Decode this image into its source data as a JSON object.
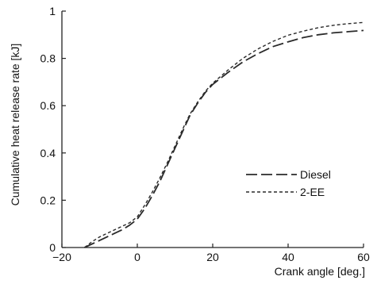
{
  "chart_data": {
    "type": "line",
    "xlabel": "Crank angle [deg.]",
    "ylabel": "Cumulative heat release rate [kJ]",
    "xlim": [
      -20,
      60
    ],
    "ylim": [
      0,
      1
    ],
    "x_ticks": [
      -20,
      0,
      20,
      40,
      60
    ],
    "y_ticks": [
      0,
      0.2,
      0.4,
      0.6,
      0.8,
      1
    ],
    "x_tick_labels": [
      "−20",
      "0",
      "20",
      "40",
      "60"
    ],
    "y_tick_labels": [
      "0",
      "0.2",
      "0.4",
      "0.6",
      "0.8",
      "1"
    ],
    "grid": false,
    "legend_position": "right",
    "series": [
      {
        "name": "Diesel",
        "style": "long-dash",
        "x": [
          -14,
          -12,
          -10,
          -8,
          -6,
          -4,
          -2,
          0,
          2,
          4,
          6,
          8,
          10,
          12,
          14,
          16,
          18,
          20,
          24,
          28,
          32,
          36,
          40,
          44,
          48,
          52,
          56,
          60
        ],
        "y": [
          0,
          0.015,
          0.03,
          0.045,
          0.06,
          0.075,
          0.095,
          0.12,
          0.165,
          0.22,
          0.28,
          0.35,
          0.42,
          0.49,
          0.56,
          0.61,
          0.655,
          0.69,
          0.74,
          0.785,
          0.82,
          0.85,
          0.87,
          0.888,
          0.9,
          0.908,
          0.913,
          0.918
        ]
      },
      {
        "name": "2-EE",
        "style": "short-dash",
        "x": [
          -14,
          -12,
          -10,
          -8,
          -6,
          -4,
          -2,
          0,
          2,
          4,
          6,
          8,
          10,
          12,
          14,
          16,
          18,
          20,
          24,
          28,
          32,
          36,
          40,
          44,
          48,
          52,
          56,
          60
        ],
        "y": [
          0,
          0.025,
          0.045,
          0.06,
          0.075,
          0.09,
          0.105,
          0.13,
          0.18,
          0.235,
          0.295,
          0.36,
          0.43,
          0.5,
          0.565,
          0.615,
          0.66,
          0.695,
          0.75,
          0.8,
          0.84,
          0.872,
          0.898,
          0.915,
          0.93,
          0.94,
          0.947,
          0.952
        ]
      }
    ]
  },
  "colors": {
    "axis": "#222222",
    "text": "#111111",
    "line": "#2a2a2a"
  }
}
